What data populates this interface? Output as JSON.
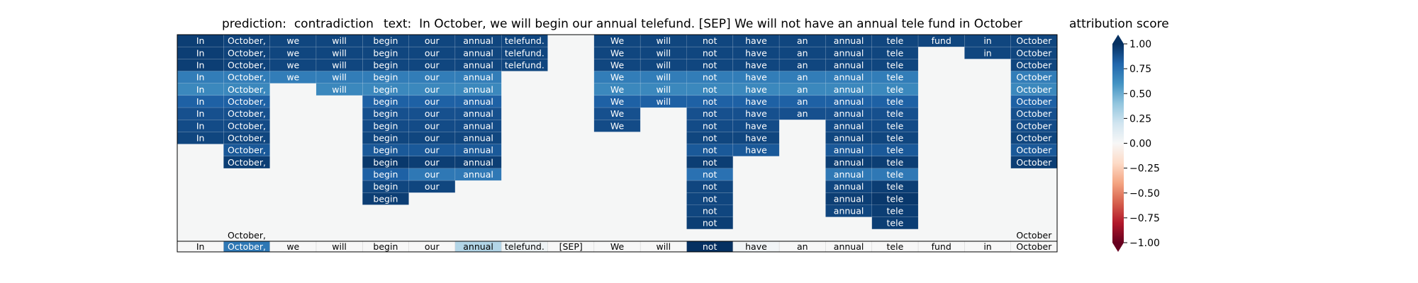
{
  "chart_data": {
    "type": "heatmap",
    "title_left": "prediction:  contradiction",
    "title_text": "text:  In October, we will begin our annual telefund. [SEP] We will not have an annual tele fund in October",
    "tokens": [
      "In",
      "October,",
      "we",
      "will",
      "begin",
      "our",
      "annual",
      "telefund.",
      "[SEP]",
      "We",
      "will",
      "not",
      "have",
      "an",
      "annual",
      "tele",
      "fund",
      "in",
      "October"
    ],
    "rows": [
      [
        0.95,
        0.93,
        0.92,
        0.92,
        0.92,
        0.92,
        0.92,
        0.92,
        null,
        0.92,
        0.92,
        0.92,
        0.92,
        0.92,
        0.92,
        0.92,
        0.92,
        0.92,
        0.92
      ],
      [
        0.95,
        0.93,
        0.92,
        0.92,
        0.92,
        0.92,
        0.92,
        0.92,
        null,
        0.92,
        0.92,
        0.92,
        0.92,
        0.92,
        0.92,
        0.92,
        null,
        0.92,
        0.92
      ],
      [
        0.95,
        0.93,
        0.92,
        0.92,
        0.92,
        0.92,
        0.92,
        0.92,
        null,
        0.92,
        0.92,
        0.92,
        0.92,
        0.92,
        0.92,
        0.92,
        null,
        null,
        0.92
      ],
      [
        0.7,
        0.7,
        0.7,
        0.7,
        0.7,
        0.7,
        0.7,
        null,
        null,
        0.7,
        0.7,
        0.7,
        0.7,
        0.7,
        0.7,
        0.7,
        null,
        null,
        0.7
      ],
      [
        0.65,
        0.65,
        null,
        0.65,
        0.65,
        0.65,
        0.65,
        null,
        null,
        0.65,
        0.65,
        0.65,
        0.65,
        0.65,
        0.65,
        0.65,
        null,
        null,
        0.65
      ],
      [
        0.82,
        0.82,
        null,
        null,
        0.82,
        0.82,
        0.82,
        null,
        null,
        0.82,
        0.82,
        0.82,
        0.82,
        0.82,
        0.82,
        0.82,
        null,
        null,
        0.82
      ],
      [
        0.88,
        0.88,
        null,
        null,
        0.88,
        0.88,
        0.88,
        null,
        null,
        0.88,
        null,
        0.88,
        0.88,
        0.88,
        0.88,
        0.88,
        null,
        null,
        0.88
      ],
      [
        0.9,
        0.9,
        null,
        null,
        0.9,
        0.9,
        0.9,
        null,
        null,
        0.9,
        null,
        0.9,
        0.9,
        null,
        0.9,
        0.9,
        null,
        null,
        0.9
      ],
      [
        0.92,
        0.92,
        null,
        null,
        0.92,
        0.92,
        0.92,
        null,
        null,
        null,
        null,
        0.92,
        0.92,
        null,
        0.92,
        0.92,
        null,
        null,
        0.92
      ],
      [
        null,
        0.85,
        null,
        null,
        0.85,
        0.85,
        0.85,
        null,
        null,
        null,
        null,
        0.85,
        0.85,
        null,
        0.85,
        0.85,
        null,
        null,
        0.85
      ],
      [
        null,
        0.95,
        null,
        null,
        0.97,
        0.95,
        0.95,
        null,
        null,
        null,
        null,
        0.95,
        null,
        null,
        0.95,
        0.95,
        null,
        null,
        0.95
      ],
      [
        null,
        null,
        null,
        null,
        0.82,
        0.72,
        0.72,
        null,
        null,
        null,
        null,
        0.75,
        null,
        null,
        0.72,
        0.72,
        null,
        null,
        null
      ],
      [
        null,
        null,
        null,
        null,
        0.92,
        0.92,
        null,
        null,
        null,
        null,
        null,
        0.92,
        null,
        null,
        0.92,
        0.95,
        null,
        null,
        null
      ],
      [
        null,
        null,
        null,
        null,
        0.95,
        null,
        null,
        null,
        null,
        null,
        null,
        0.92,
        null,
        null,
        0.95,
        0.97,
        null,
        null,
        null
      ],
      [
        null,
        null,
        null,
        null,
        null,
        null,
        null,
        null,
        null,
        null,
        null,
        0.92,
        null,
        null,
        0.92,
        0.95,
        null,
        null,
        null
      ],
      [
        null,
        null,
        null,
        null,
        null,
        null,
        null,
        null,
        null,
        null,
        null,
        0.95,
        null,
        null,
        null,
        0.95,
        null,
        null,
        null
      ],
      [
        null,
        null,
        null,
        null,
        null,
        null,
        null,
        null,
        null,
        null,
        null,
        null,
        null,
        null,
        null,
        null,
        null,
        null,
        null
      ]
    ],
    "row_labels_above": [
      [
        null,
        null,
        null,
        null,
        null,
        null,
        null,
        null,
        null,
        null,
        null,
        null,
        null,
        null,
        null,
        null,
        null,
        null,
        null
      ],
      [
        null,
        null,
        null,
        null,
        null,
        null,
        null,
        null,
        null,
        null,
        null,
        null,
        null,
        null,
        null,
        null,
        null,
        null,
        null
      ],
      [
        null,
        null,
        null,
        null,
        null,
        null,
        null,
        null,
        null,
        null,
        null,
        null,
        null,
        null,
        null,
        null,
        null,
        null,
        null
      ],
      [
        null,
        null,
        null,
        null,
        null,
        null,
        null,
        null,
        null,
        null,
        null,
        null,
        null,
        null,
        null,
        null,
        null,
        null,
        null
      ],
      [
        null,
        null,
        null,
        null,
        null,
        null,
        null,
        null,
        null,
        null,
        null,
        null,
        null,
        null,
        null,
        null,
        null,
        null,
        null
      ],
      [
        null,
        null,
        null,
        null,
        null,
        null,
        null,
        null,
        null,
        null,
        null,
        null,
        null,
        null,
        null,
        null,
        null,
        null,
        null
      ],
      [
        null,
        null,
        null,
        null,
        null,
        null,
        null,
        null,
        null,
        null,
        null,
        null,
        null,
        null,
        null,
        null,
        null,
        null,
        null
      ],
      [
        null,
        null,
        null,
        null,
        null,
        null,
        null,
        null,
        null,
        null,
        null,
        null,
        null,
        null,
        null,
        null,
        null,
        null,
        null
      ],
      [
        null,
        null,
        null,
        null,
        null,
        null,
        null,
        null,
        null,
        null,
        null,
        null,
        null,
        null,
        null,
        null,
        null,
        null,
        null
      ],
      [
        null,
        null,
        null,
        null,
        null,
        null,
        null,
        null,
        null,
        null,
        null,
        null,
        null,
        null,
        null,
        null,
        null,
        null,
        null
      ],
      [
        null,
        null,
        null,
        null,
        null,
        null,
        null,
        null,
        null,
        null,
        null,
        null,
        null,
        null,
        null,
        null,
        null,
        null,
        null
      ],
      [
        null,
        null,
        null,
        null,
        null,
        null,
        null,
        null,
        null,
        null,
        null,
        null,
        null,
        null,
        null,
        null,
        null,
        null,
        null
      ],
      [
        null,
        null,
        null,
        null,
        null,
        null,
        null,
        null,
        null,
        null,
        null,
        null,
        null,
        null,
        null,
        null,
        null,
        null,
        null
      ],
      [
        null,
        null,
        null,
        null,
        null,
        null,
        null,
        null,
        null,
        null,
        null,
        null,
        null,
        null,
        null,
        null,
        null,
        null,
        null
      ],
      [
        null,
        null,
        null,
        null,
        null,
        null,
        null,
        null,
        null,
        null,
        null,
        null,
        null,
        null,
        null,
        null,
        null,
        null,
        null
      ],
      [
        null,
        null,
        null,
        null,
        null,
        null,
        null,
        null,
        null,
        null,
        null,
        null,
        null,
        null,
        null,
        null,
        null,
        null,
        null
      ],
      [
        null,
        "October,",
        null,
        null,
        null,
        null,
        null,
        null,
        null,
        null,
        null,
        null,
        null,
        null,
        null,
        null,
        null,
        null,
        "October"
      ]
    ],
    "attribution": [
      0.0,
      0.72,
      0.0,
      0.0,
      0.0,
      0.0,
      0.3,
      0.05,
      0.0,
      0.0,
      0.0,
      1.0,
      0.03,
      0.0,
      0.0,
      0.0,
      0.0,
      0.0,
      0.0
    ],
    "colorbar": {
      "label": "attribution score",
      "range": [
        -1.0,
        1.0
      ],
      "ticks": [
        "1.00",
        "0.75",
        "0.50",
        "0.25",
        "0.00",
        "−0.25",
        "−0.50",
        "−0.75",
        "−1.00"
      ],
      "tick_values": [
        1.0,
        0.75,
        0.5,
        0.25,
        0.0,
        -0.25,
        -0.5,
        -0.75,
        -1.0
      ],
      "colormap": "RdBu"
    }
  }
}
